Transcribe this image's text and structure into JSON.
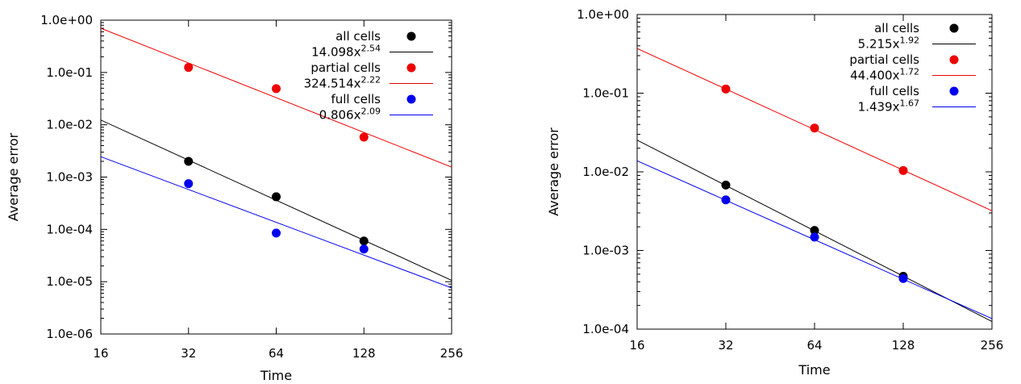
{
  "chart_data": [
    {
      "type": "scatter",
      "xlabel": "Time",
      "ylabel": "Average error",
      "x_scale": "log2",
      "y_scale": "log10",
      "xlim": [
        16,
        256
      ],
      "ylim": [
        1e-06,
        1
      ],
      "x_ticks": [
        "16",
        "32",
        "64",
        "128",
        "256"
      ],
      "y_ticks": [
        "1.0e+00",
        "1.0e-01",
        "1.0e-02",
        "1.0e-03",
        "1.0e-04",
        "1.0e-05",
        "1.0e-06"
      ],
      "legend_position": "top-right",
      "series": [
        {
          "name": "all cells",
          "color": "#000000",
          "x": [
            32,
            64,
            128
          ],
          "y": [
            0.002,
            0.00042,
            6e-05
          ],
          "fit_coef": "14.098",
          "fit_exp": "2.54",
          "fit_line_y": [
            0.0123,
            1.06e-05
          ]
        },
        {
          "name": "partial cells",
          "color": "#ee0000",
          "x": [
            32,
            64,
            128
          ],
          "y": [
            0.125,
            0.049,
            0.0058
          ],
          "fit_coef": "324.514",
          "fit_exp": "2.22",
          "fit_line_y": [
            0.7,
            0.00155
          ]
        },
        {
          "name": "full cells",
          "color": "#0000ee",
          "x": [
            32,
            64,
            128
          ],
          "y": [
            0.00075,
            8.5e-05,
            4.2e-05
          ],
          "fit_coef": "0.806",
          "fit_exp": "2.09",
          "fit_line_y": [
            0.00245,
            7.6e-06
          ]
        }
      ]
    },
    {
      "type": "scatter",
      "xlabel": "Time",
      "ylabel": "Average error",
      "x_scale": "log2",
      "y_scale": "log10",
      "xlim": [
        16,
        256
      ],
      "ylim": [
        0.0001,
        1
      ],
      "x_ticks": [
        "16",
        "32",
        "64",
        "128",
        "256"
      ],
      "y_ticks": [
        "1.0e+00",
        "1.0e-01",
        "1.0e-02",
        "1.0e-03",
        "1.0e-04"
      ],
      "legend_position": "top-right",
      "series": [
        {
          "name": "all cells",
          "color": "#000000",
          "x": [
            32,
            64,
            128
          ],
          "y": [
            0.0068,
            0.0018,
            0.00047
          ],
          "fit_coef": "5.215",
          "fit_exp": "1.92",
          "fit_line_y": [
            0.0253,
            0.000125
          ]
        },
        {
          "name": "partial cells",
          "color": "#ee0000",
          "x": [
            32,
            64,
            128
          ],
          "y": [
            0.113,
            0.036,
            0.0104
          ],
          "fit_coef": "44.400",
          "fit_exp": "1.72",
          "fit_line_y": [
            0.37,
            0.0032
          ]
        },
        {
          "name": "full cells",
          "color": "#0000ee",
          "x": [
            32,
            64,
            128
          ],
          "y": [
            0.0044,
            0.00148,
            0.00044
          ],
          "fit_coef": "1.439",
          "fit_exp": "1.67",
          "fit_line_y": [
            0.0138,
            0.000136
          ]
        }
      ]
    }
  ]
}
